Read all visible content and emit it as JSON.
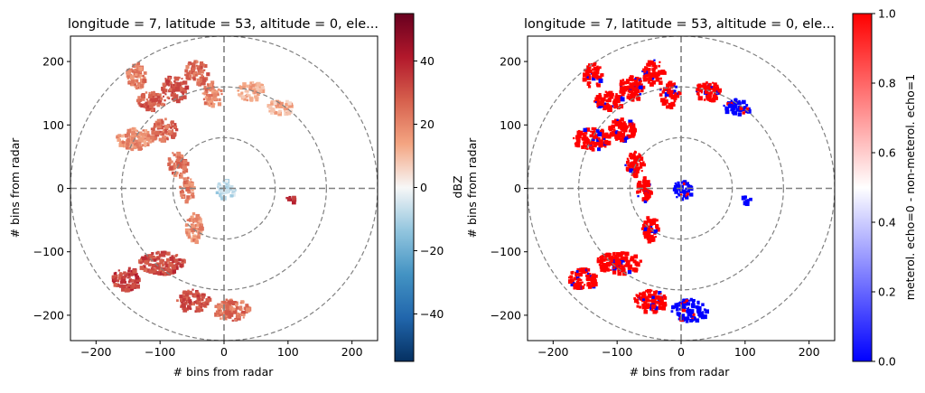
{
  "chart_data": [
    {
      "type": "heatmap",
      "title": "longitude = 7, latitude = 53, altitude = 0, ele...",
      "xlabel": "# bins from radar",
      "ylabel": "# bins from radar",
      "xlim": [
        -240,
        240
      ],
      "ylim": [
        -240,
        240
      ],
      "xticks": [
        -200,
        -100,
        0,
        100,
        200
      ],
      "yticks": [
        200,
        100,
        0,
        -100,
        -200
      ],
      "xtick_labels": [
        "−200",
        "−100",
        "0",
        "100",
        "200"
      ],
      "ytick_labels": [
        "200",
        "100",
        "0",
        "−100",
        "−200"
      ],
      "range_rings": [
        80,
        160,
        240
      ],
      "colorbar": {
        "label": "dBZ",
        "colormap": "RdBu_r",
        "range": [
          -55,
          55
        ],
        "ticks": [
          40,
          20,
          0,
          -20,
          -40
        ],
        "tick_labels": [
          "40",
          "20",
          "0",
          "−20",
          "−40"
        ]
      },
      "echo_clusters": [
        {
          "x": -140,
          "y": 180,
          "w": 30,
          "h": 40,
          "value": 22
        },
        {
          "x": -115,
          "y": 140,
          "w": 45,
          "h": 30,
          "value": 28
        },
        {
          "x": -80,
          "y": 160,
          "w": 40,
          "h": 40,
          "value": 30
        },
        {
          "x": -45,
          "y": 185,
          "w": 35,
          "h": 40,
          "value": 26
        },
        {
          "x": -20,
          "y": 150,
          "w": 30,
          "h": 40,
          "value": 20
        },
        {
          "x": 40,
          "y": 155,
          "w": 40,
          "h": 30,
          "value": 14
        },
        {
          "x": 85,
          "y": 130,
          "w": 40,
          "h": 25,
          "value": 12
        },
        {
          "x": -140,
          "y": 80,
          "w": 60,
          "h": 35,
          "value": 18
        },
        {
          "x": -95,
          "y": 95,
          "w": 40,
          "h": 35,
          "value": 26
        },
        {
          "x": -75,
          "y": 40,
          "w": 30,
          "h": 40,
          "value": 24
        },
        {
          "x": -60,
          "y": 0,
          "w": 22,
          "h": 40,
          "value": 20
        },
        {
          "x": -50,
          "y": -60,
          "w": 25,
          "h": 45,
          "value": 18
        },
        {
          "x": -100,
          "y": -115,
          "w": 70,
          "h": 35,
          "value": 32
        },
        {
          "x": -155,
          "y": -140,
          "w": 45,
          "h": 35,
          "value": 34
        },
        {
          "x": -50,
          "y": -175,
          "w": 50,
          "h": 35,
          "value": 30
        },
        {
          "x": 10,
          "y": -190,
          "w": 55,
          "h": 35,
          "value": 24
        },
        {
          "x": 0,
          "y": 0,
          "w": 30,
          "h": 30,
          "value": -8
        },
        {
          "x": 100,
          "y": -15,
          "w": 15,
          "h": 12,
          "value": 40
        }
      ]
    },
    {
      "type": "heatmap",
      "title": "longitude = 7, latitude = 53, altitude = 0, ele...",
      "xlabel": "# bins from radar",
      "ylabel": "# bins from radar",
      "xlim": [
        -240,
        240
      ],
      "ylim": [
        -240,
        240
      ],
      "xticks": [
        -200,
        -100,
        0,
        100,
        200
      ],
      "yticks": [
        200,
        100,
        0,
        -100,
        -200
      ],
      "xtick_labels": [
        "−200",
        "−100",
        "0",
        "100",
        "200"
      ],
      "ytick_labels": [
        "200",
        "100",
        "0",
        "−100",
        "−200"
      ],
      "range_rings": [
        80,
        160,
        240
      ],
      "colorbar": {
        "label": "meterol. echo=0 - non-meterol. echo=1",
        "colormap": "bwr",
        "range": [
          0,
          1
        ],
        "ticks": [
          1.0,
          0.8,
          0.6,
          0.4,
          0.2,
          0.0
        ],
        "tick_labels": [
          "1.0",
          "0.8",
          "0.6",
          "0.4",
          "0.2",
          "0.0"
        ]
      },
      "echo_clusters": [
        {
          "x": -140,
          "y": 180,
          "w": 30,
          "h": 40,
          "value": 1
        },
        {
          "x": -115,
          "y": 140,
          "w": 45,
          "h": 30,
          "value": 1
        },
        {
          "x": -80,
          "y": 160,
          "w": 40,
          "h": 40,
          "value": 1
        },
        {
          "x": -45,
          "y": 185,
          "w": 35,
          "h": 40,
          "value": 1
        },
        {
          "x": -20,
          "y": 150,
          "w": 30,
          "h": 40,
          "value": 1
        },
        {
          "x": 40,
          "y": 155,
          "w": 40,
          "h": 30,
          "value": 1
        },
        {
          "x": 85,
          "y": 130,
          "w": 40,
          "h": 25,
          "value": 0
        },
        {
          "x": -140,
          "y": 80,
          "w": 60,
          "h": 35,
          "value": 1
        },
        {
          "x": -95,
          "y": 95,
          "w": 40,
          "h": 35,
          "value": 1
        },
        {
          "x": -75,
          "y": 40,
          "w": 30,
          "h": 40,
          "value": 1
        },
        {
          "x": -60,
          "y": 0,
          "w": 22,
          "h": 40,
          "value": 1
        },
        {
          "x": -50,
          "y": -60,
          "w": 25,
          "h": 45,
          "value": 1
        },
        {
          "x": -100,
          "y": -115,
          "w": 70,
          "h": 35,
          "value": 1
        },
        {
          "x": -155,
          "y": -140,
          "w": 45,
          "h": 35,
          "value": 1
        },
        {
          "x": -50,
          "y": -175,
          "w": 50,
          "h": 35,
          "value": 1
        },
        {
          "x": 10,
          "y": -190,
          "w": 55,
          "h": 35,
          "value": 0
        },
        {
          "x": 0,
          "y": 0,
          "w": 30,
          "h": 30,
          "value": 0
        },
        {
          "x": 100,
          "y": -15,
          "w": 15,
          "h": 12,
          "value": 0
        }
      ]
    }
  ]
}
